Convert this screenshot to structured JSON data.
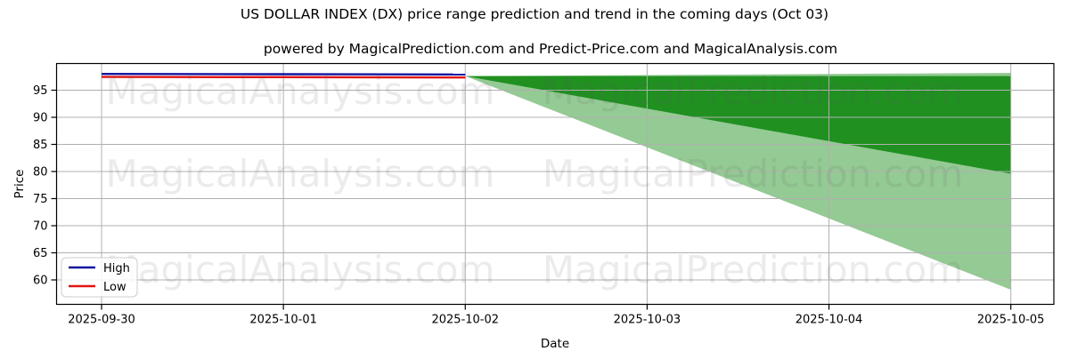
{
  "chart_data": {
    "type": "line",
    "title": "US DOLLAR INDEX (DX) price range prediction and trend in the coming days (Oct 03)",
    "subtitle": "powered by MagicalPrediction.com and Predict-Price.com and MagicalAnalysis.com",
    "xlabel": "Date",
    "ylabel": "Price",
    "x": [
      "2025-09-30",
      "2025-10-01",
      "2025-10-02"
    ],
    "series": [
      {
        "name": "High",
        "color": "#1414a0",
        "values": [
          98.0,
          97.95,
          97.9
        ]
      },
      {
        "name": "Low",
        "color": "#e11414",
        "values": [
          97.45,
          97.4,
          97.35
        ]
      }
    ],
    "forecast_bands": [
      {
        "name": "outer-range",
        "color": "#008000",
        "opacity": 0.42,
        "start_x": "2025-10-02",
        "start_value": 97.6,
        "end_x": "2025-10-05",
        "end_top": 98.2,
        "end_bottom": 58.2
      },
      {
        "name": "inner-range",
        "color": "#008000",
        "opacity": 0.78,
        "start_x": "2025-10-02",
        "start_value": 97.6,
        "end_x": "2025-10-05",
        "end_top": 97.6,
        "end_bottom": 79.6
      }
    ],
    "xticks": [
      "2025-09-30",
      "2025-10-01",
      "2025-10-02",
      "2025-10-03",
      "2025-10-04",
      "2025-10-05"
    ],
    "yticks": [
      60,
      65,
      70,
      75,
      80,
      85,
      90,
      95
    ],
    "ylim": [
      55.5,
      100.0
    ],
    "grid": true,
    "grid_color": "#b0b0b0",
    "frame_color": "#000000",
    "legend": {
      "position": "lower left",
      "entries": [
        "High",
        "Low"
      ]
    },
    "watermarks": {
      "color": "#5a5a5a",
      "opacity": 0.12,
      "rows": [
        {
          "left": "MagicalAnalysis.com",
          "right": "MagicalPrediction.com"
        },
        {
          "left": "MagicalAnalysis.com",
          "right": "MagicalPrediction.com"
        },
        {
          "left": "MagicalAnalysis.com",
          "right": "MagicalPrediction.com"
        }
      ]
    }
  }
}
